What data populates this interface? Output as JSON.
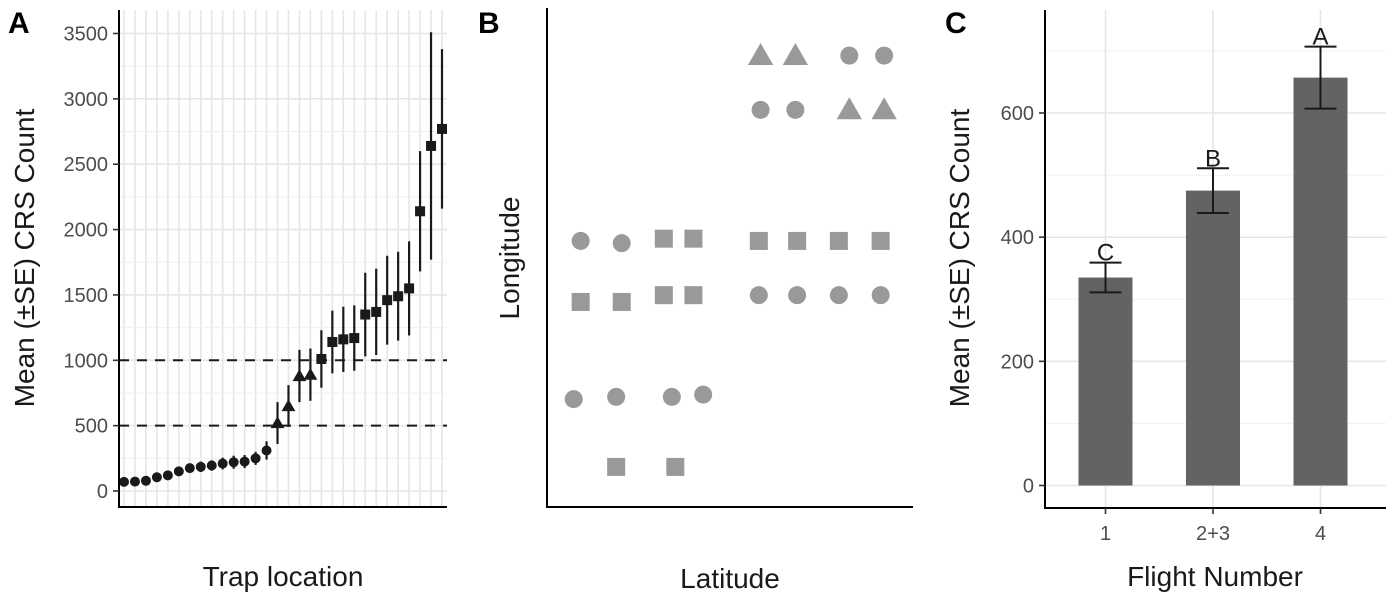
{
  "chart_data": [
    {
      "panel": "A",
      "type": "scatter",
      "xlabel": "Trap location",
      "ylabel": "Mean (±SE) CRS Count",
      "ylim": [
        -100,
        3650
      ],
      "yticks": [
        0,
        500,
        1000,
        1500,
        2000,
        2500,
        3000,
        3500
      ],
      "ytick_labels": [
        "0",
        "500",
        "1000",
        "1500",
        "2000",
        "2500",
        "3000",
        "3500"
      ],
      "reference_lines": [
        500,
        1000
      ],
      "grid": true,
      "points": [
        {
          "y": 70,
          "se": 0,
          "shape": "circle"
        },
        {
          "y": 72,
          "se": 0,
          "shape": "circle"
        },
        {
          "y": 78,
          "se": 0,
          "shape": "circle"
        },
        {
          "y": 105,
          "se": 0,
          "shape": "circle"
        },
        {
          "y": 120,
          "se": 0,
          "shape": "circle"
        },
        {
          "y": 150,
          "se": 20,
          "shape": "circle"
        },
        {
          "y": 175,
          "se": 30,
          "shape": "circle"
        },
        {
          "y": 185,
          "se": 40,
          "shape": "circle"
        },
        {
          "y": 195,
          "se": 40,
          "shape": "circle"
        },
        {
          "y": 210,
          "se": 45,
          "shape": "circle"
        },
        {
          "y": 220,
          "se": 50,
          "shape": "circle"
        },
        {
          "y": 225,
          "se": 50,
          "shape": "circle"
        },
        {
          "y": 250,
          "se": 50,
          "shape": "circle"
        },
        {
          "y": 310,
          "se": 70,
          "shape": "circle"
        },
        {
          "y": 520,
          "se": 160,
          "shape": "triangle"
        },
        {
          "y": 650,
          "se": 160,
          "shape": "triangle"
        },
        {
          "y": 880,
          "se": 200,
          "shape": "triangle"
        },
        {
          "y": 890,
          "se": 200,
          "shape": "triangle"
        },
        {
          "y": 1010,
          "se": 220,
          "shape": "square"
        },
        {
          "y": 1140,
          "se": 240,
          "shape": "square"
        },
        {
          "y": 1160,
          "se": 250,
          "shape": "square"
        },
        {
          "y": 1170,
          "se": 250,
          "shape": "square"
        },
        {
          "y": 1350,
          "se": 320,
          "shape": "square"
        },
        {
          "y": 1370,
          "se": 330,
          "shape": "square"
        },
        {
          "y": 1460,
          "se": 340,
          "shape": "square"
        },
        {
          "y": 1490,
          "se": 340,
          "shape": "square"
        },
        {
          "y": 1550,
          "se": 360,
          "shape": "square"
        },
        {
          "y": 2140,
          "se": 460,
          "shape": "square"
        },
        {
          "y": 2640,
          "se": 870,
          "shape": "square"
        },
        {
          "y": 2770,
          "se": 610,
          "shape": "square"
        }
      ]
    },
    {
      "panel": "B",
      "type": "scatter",
      "xlabel": "Latitude",
      "ylabel": "Longitude",
      "xlim": [
        0,
        100
      ],
      "ylim": [
        0,
        100
      ],
      "grid": false,
      "marker_color": "#999999",
      "points": [
        {
          "x": 58.5,
          "y": 95,
          "shape": "triangle"
        },
        {
          "x": 68.5,
          "y": 95,
          "shape": "triangle"
        },
        {
          "x": 84,
          "y": 95,
          "shape": "circle"
        },
        {
          "x": 94,
          "y": 95,
          "shape": "circle"
        },
        {
          "x": 58.5,
          "y": 83,
          "shape": "circle"
        },
        {
          "x": 68.5,
          "y": 83,
          "shape": "circle"
        },
        {
          "x": 84,
          "y": 83,
          "shape": "triangle"
        },
        {
          "x": 94,
          "y": 83,
          "shape": "triangle"
        },
        {
          "x": 6.8,
          "y": 54,
          "shape": "circle"
        },
        {
          "x": 18.6,
          "y": 53.5,
          "shape": "circle"
        },
        {
          "x": 30.7,
          "y": 54.5,
          "shape": "square"
        },
        {
          "x": 39.2,
          "y": 54.5,
          "shape": "square"
        },
        {
          "x": 58,
          "y": 54,
          "shape": "square"
        },
        {
          "x": 69,
          "y": 54,
          "shape": "square"
        },
        {
          "x": 81,
          "y": 54,
          "shape": "square"
        },
        {
          "x": 93,
          "y": 54,
          "shape": "square"
        },
        {
          "x": 6.8,
          "y": 40.5,
          "shape": "square"
        },
        {
          "x": 18.6,
          "y": 40.5,
          "shape": "square"
        },
        {
          "x": 30.7,
          "y": 42,
          "shape": "square"
        },
        {
          "x": 39.2,
          "y": 42,
          "shape": "square"
        },
        {
          "x": 58,
          "y": 42,
          "shape": "circle"
        },
        {
          "x": 69,
          "y": 42,
          "shape": "circle"
        },
        {
          "x": 81,
          "y": 42,
          "shape": "circle"
        },
        {
          "x": 93,
          "y": 42,
          "shape": "circle"
        },
        {
          "x": 4.8,
          "y": 19,
          "shape": "circle"
        },
        {
          "x": 17,
          "y": 19.5,
          "shape": "circle"
        },
        {
          "x": 33,
          "y": 19.5,
          "shape": "circle"
        },
        {
          "x": 42,
          "y": 20,
          "shape": "circle"
        },
        {
          "x": 17,
          "y": 4,
          "shape": "square"
        },
        {
          "x": 34,
          "y": 4,
          "shape": "square"
        }
      ]
    },
    {
      "panel": "C",
      "type": "bar",
      "xlabel": "Flight Number",
      "ylabel": "Mean (±SE) CRS Count",
      "categories": [
        "1",
        "2+3",
        "4"
      ],
      "values": [
        335,
        475,
        657
      ],
      "se": [
        24,
        36,
        50
      ],
      "significance": [
        "C",
        "B",
        "A"
      ],
      "ylim": [
        -35,
        760
      ],
      "yticks": [
        0,
        200,
        400,
        600
      ],
      "ytick_labels": [
        "0",
        "200",
        "400",
        "600"
      ],
      "bar_color": "#636363",
      "grid": true
    }
  ]
}
